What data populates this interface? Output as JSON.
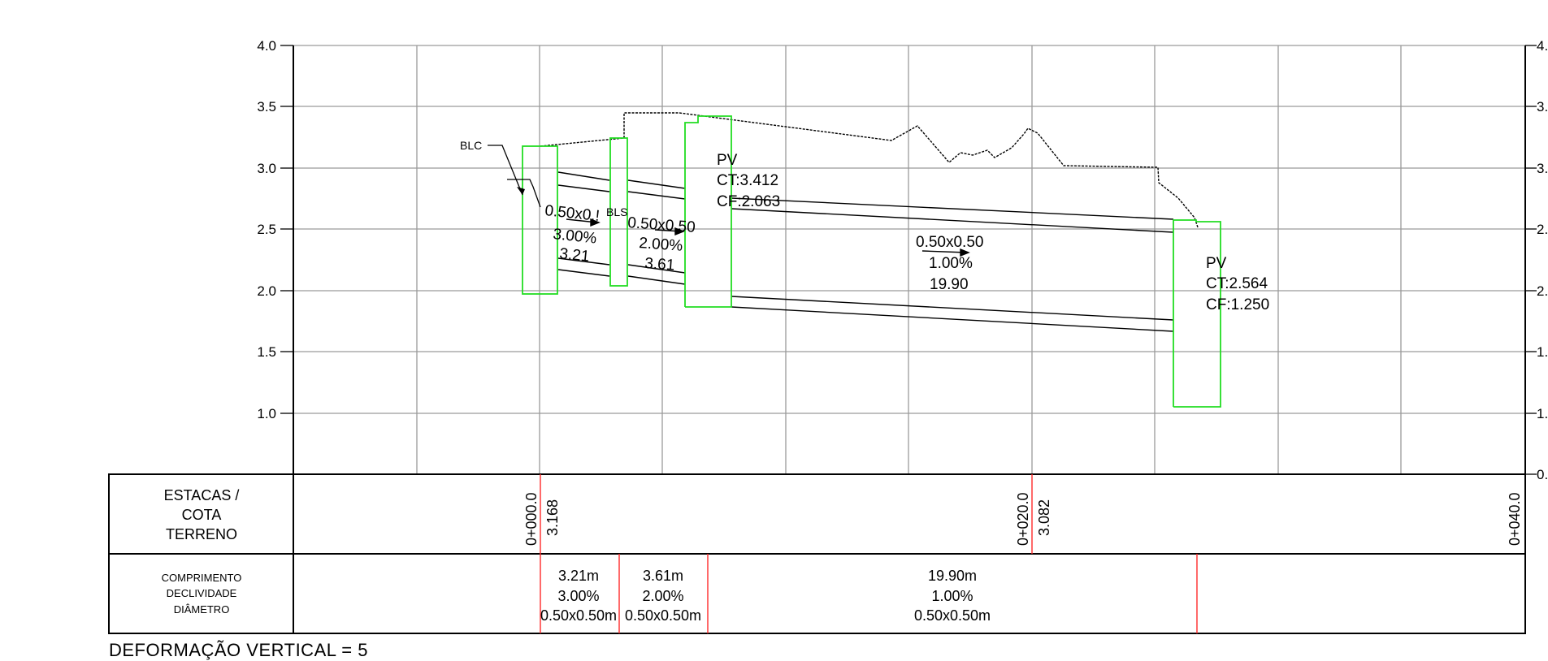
{
  "profile": {
    "y_axis_left": [
      "4.0",
      "3.5",
      "3.0",
      "2.5",
      "2.0",
      "1.5",
      "1.0"
    ],
    "y_axis_right": [
      "4.",
      "3.",
      "3.",
      "2.",
      "2.",
      "1.",
      "1.",
      "0."
    ],
    "blc_label": "BLC",
    "bls_label": "BLS",
    "pv1": {
      "title": "PV",
      "ct": "CT:3.412",
      "cf": "CF:2.063"
    },
    "pv2": {
      "title": "PV",
      "ct": "CT:2.564",
      "cf": "CF:1.250"
    },
    "segments": [
      {
        "diameter": "0.50x0.!",
        "slope": "3.00%",
        "length": "3.21"
      },
      {
        "diameter": "0.50x0.50",
        "slope": "2.00%",
        "length": "3.61"
      },
      {
        "diameter": "0.50x0.50",
        "slope": "1.00%",
        "length": "19.90"
      }
    ]
  },
  "table": {
    "row1_header": [
      "ESTACAS /",
      "COTA",
      "TERRENO"
    ],
    "row2_header": [
      "COMPRIMENTO",
      "DECLIVIDADE",
      "DIÂMETRO"
    ],
    "stations": [
      {
        "station": "0+000.0",
        "cota": "3.168"
      },
      {
        "station": "0+020.0",
        "cota": "3.082"
      },
      {
        "station": "0+040.0",
        "cota": ""
      }
    ],
    "segment_cells": [
      {
        "length": "3.21m",
        "slope": "3.00%",
        "diameter": "0.50x0.50m"
      },
      {
        "length": "3.61m",
        "slope": "2.00%",
        "diameter": "0.50x0.50m"
      },
      {
        "length": "19.90m",
        "slope": "1.00%",
        "diameter": "0.50x0.50m"
      }
    ]
  },
  "footer": {
    "note": "DEFORMAÇÃO VERTICAL = 5"
  }
}
